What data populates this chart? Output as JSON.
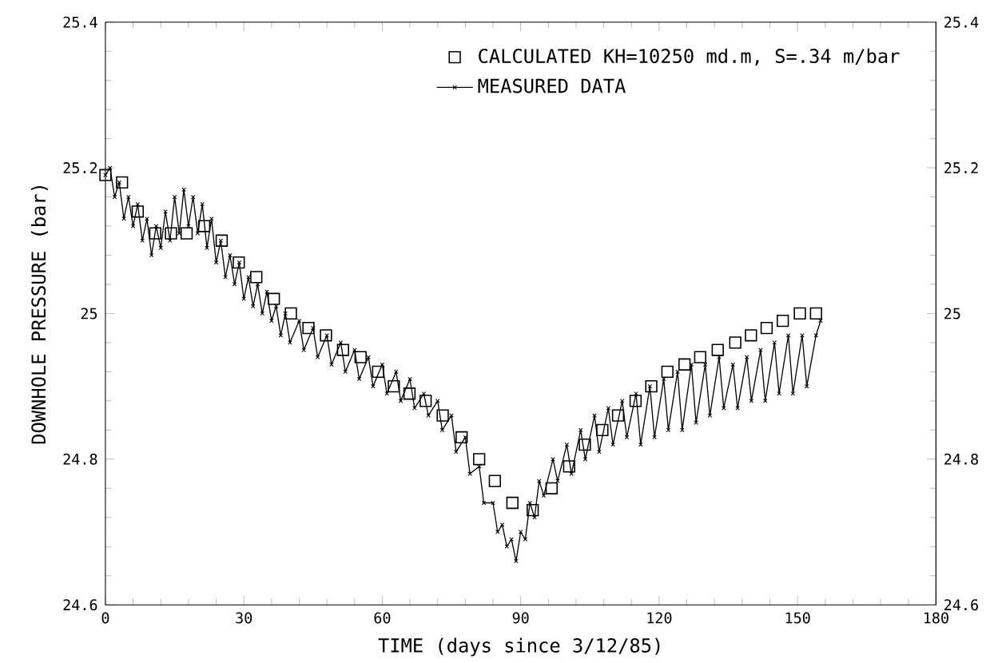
{
  "chart_data": {
    "type": "scatter",
    "xlabel": "TIME (days since 3/12/85)",
    "ylabel": "DOWNHOLE PRESSURE (bar)",
    "xlim": [
      0,
      180
    ],
    "xticks": [
      0,
      30,
      60,
      90,
      120,
      150,
      180
    ],
    "ylim": [
      24.6,
      25.4
    ],
    "yticks": [
      24.6,
      24.8,
      25,
      25.2,
      25.4
    ],
    "y2lim": [
      24.6,
      25.4
    ],
    "y2ticks": [
      24.6,
      24.8,
      25,
      25.2,
      25.4
    ],
    "legend": "top right",
    "grid": false,
    "series": [
      {
        "name": "CALCULATED KH=10250 md.m, S=.34 m/bar",
        "marker": "square",
        "color": "#000000",
        "x": [
          0,
          3.6,
          7.0,
          10.8,
          14.2,
          17.6,
          21.4,
          25.2,
          28.9,
          32.7,
          36.5,
          40.2,
          44.0,
          47.8,
          51.5,
          55.3,
          59.1,
          62.5,
          65.9,
          69.4,
          73.1,
          77.2,
          81.0,
          84.4,
          88.2,
          92.6,
          96.7,
          100.5,
          103.9,
          107.7,
          111.1,
          114.9,
          118.3,
          121.8,
          125.5,
          128.9,
          132.7,
          136.5,
          139.9,
          143.3,
          146.8,
          150.5,
          154.0
        ],
        "values": [
          25.19,
          25.18,
          25.14,
          25.11,
          25.11,
          25.11,
          25.12,
          25.1,
          25.07,
          25.05,
          25.02,
          25.0,
          24.98,
          24.97,
          24.95,
          24.94,
          24.92,
          24.9,
          24.89,
          24.88,
          24.86,
          24.83,
          24.8,
          24.77,
          24.74,
          24.73,
          24.76,
          24.79,
          24.82,
          24.84,
          24.86,
          24.88,
          24.9,
          24.92,
          24.93,
          24.94,
          24.95,
          24.96,
          24.97,
          24.98,
          24.99,
          25.0,
          25.0
        ]
      },
      {
        "name": "MEASURED DATA",
        "type": "line",
        "marker": "cross",
        "color": "#000000",
        "x": [
          0,
          1,
          2,
          3,
          4,
          5,
          6,
          7,
          8,
          9,
          10,
          11,
          12,
          13,
          14,
          15,
          16,
          17,
          18,
          19,
          20,
          21,
          22,
          23,
          24,
          25,
          26,
          27,
          28,
          29,
          30,
          31,
          32,
          33,
          34,
          35,
          36,
          37,
          38,
          39,
          40,
          42,
          43,
          45,
          46,
          48,
          49,
          51,
          52,
          54,
          55,
          57,
          58,
          60,
          61,
          63,
          64,
          66,
          67,
          69,
          70,
          72,
          73,
          75,
          76,
          78,
          79,
          81,
          82,
          84,
          85,
          86,
          87,
          88,
          89,
          90,
          91,
          92,
          93,
          94,
          95,
          97,
          98,
          100,
          101,
          103,
          104,
          106,
          107,
          109,
          110,
          112,
          113,
          115,
          116,
          118,
          119,
          121,
          122,
          124,
          125,
          127,
          128,
          130,
          131,
          133,
          134,
          136,
          137,
          139,
          140,
          142,
          143,
          145,
          146,
          148,
          149,
          151,
          152,
          154,
          155
        ],
        "values": [
          25.19,
          25.2,
          25.16,
          25.18,
          25.13,
          25.16,
          25.12,
          25.15,
          25.1,
          25.13,
          25.08,
          25.12,
          25.09,
          25.14,
          25.1,
          25.16,
          25.11,
          25.17,
          25.12,
          25.16,
          25.11,
          25.15,
          25.09,
          25.13,
          25.07,
          25.1,
          25.05,
          25.08,
          25.04,
          25.07,
          25.02,
          25.05,
          25.01,
          25.04,
          25.0,
          25.03,
          24.99,
          25.01,
          24.97,
          25.0,
          24.96,
          24.99,
          24.95,
          24.98,
          24.94,
          24.97,
          24.93,
          24.96,
          24.92,
          24.95,
          24.91,
          24.94,
          24.9,
          24.93,
          24.89,
          24.92,
          24.88,
          24.91,
          24.87,
          24.89,
          24.86,
          24.88,
          24.84,
          24.86,
          24.81,
          24.83,
          24.78,
          24.79,
          24.74,
          24.74,
          24.7,
          24.71,
          24.68,
          24.69,
          24.66,
          24.7,
          24.69,
          24.74,
          24.72,
          24.77,
          24.75,
          24.8,
          24.77,
          24.82,
          24.78,
          24.84,
          24.8,
          24.86,
          24.81,
          24.87,
          24.82,
          24.88,
          24.83,
          24.89,
          24.82,
          24.9,
          24.83,
          24.91,
          24.84,
          24.92,
          24.84,
          24.93,
          24.85,
          24.93,
          24.86,
          24.94,
          24.87,
          24.93,
          24.87,
          24.94,
          24.88,
          24.95,
          24.88,
          24.96,
          24.89,
          24.97,
          24.89,
          24.97,
          24.9,
          24.97,
          24.99
        ]
      }
    ]
  }
}
